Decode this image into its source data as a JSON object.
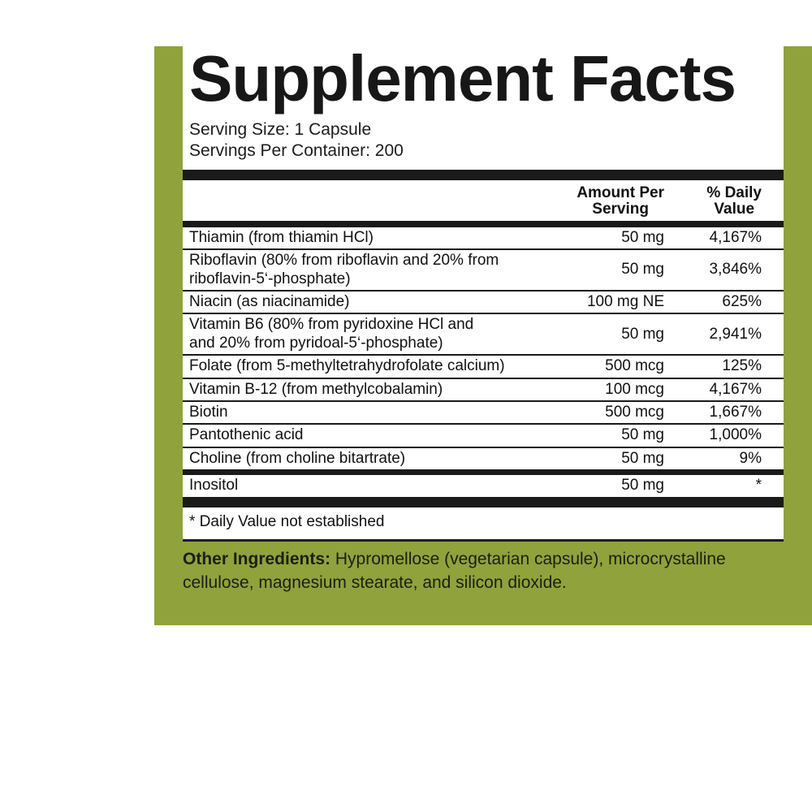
{
  "panel": {
    "title": "Supplement Facts",
    "serving_size": "Serving Size: 1 Capsule",
    "servings_per_container": "Servings Per Container: 200"
  },
  "table": {
    "headers": {
      "amount": [
        "Amount Per",
        "Serving"
      ],
      "daily_value": [
        "% Daily",
        "Value"
      ]
    },
    "rows": [
      {
        "name": "Thiamin (from thiamin HCl)",
        "amount": "50 mg",
        "daily_value": "4,167%"
      },
      {
        "name": [
          "Riboflavin (80% from riboflavin and 20% from",
          "riboflavin-5‘-phosphate)"
        ],
        "amount": "50 mg",
        "daily_value": "3,846%"
      },
      {
        "name": "Niacin (as niacinamide)",
        "amount": "100 mg NE",
        "daily_value": "625%"
      },
      {
        "name": [
          "Vitamin B6 (80% from pyridoxine HCl and",
          "and 20% from pyridoal-5‘-phosphate)"
        ],
        "amount": "50 mg",
        "daily_value": "2,941%"
      },
      {
        "name": "Folate (from 5-methyltetrahydrofolate calcium)",
        "amount": "500 mcg",
        "daily_value": "125%"
      },
      {
        "name": "Vitamin B-12 (from methylcobalamin)",
        "amount": "100 mcg",
        "daily_value": "4,167%"
      },
      {
        "name": "Biotin",
        "amount": "500 mcg",
        "daily_value": "1,667%"
      },
      {
        "name": "Pantothenic acid",
        "amount": "50 mg",
        "daily_value": "1,000%"
      },
      {
        "name": "Choline (from choline bitartrate)",
        "amount": "50 mg",
        "daily_value": "9%"
      },
      {
        "name": "Inositol",
        "amount": "50 mg",
        "daily_value": "*"
      }
    ],
    "footnote": "* Daily Value not established"
  },
  "footer": {
    "label": "Other Ingredients:",
    "text": " Hypromellose (vegetarian capsule), microcrystalline cellulose, magnesium stearate, and silicon dioxide."
  },
  "colors": {
    "label_green": "#8FA23C",
    "bar_black": "#1A1A1A"
  }
}
